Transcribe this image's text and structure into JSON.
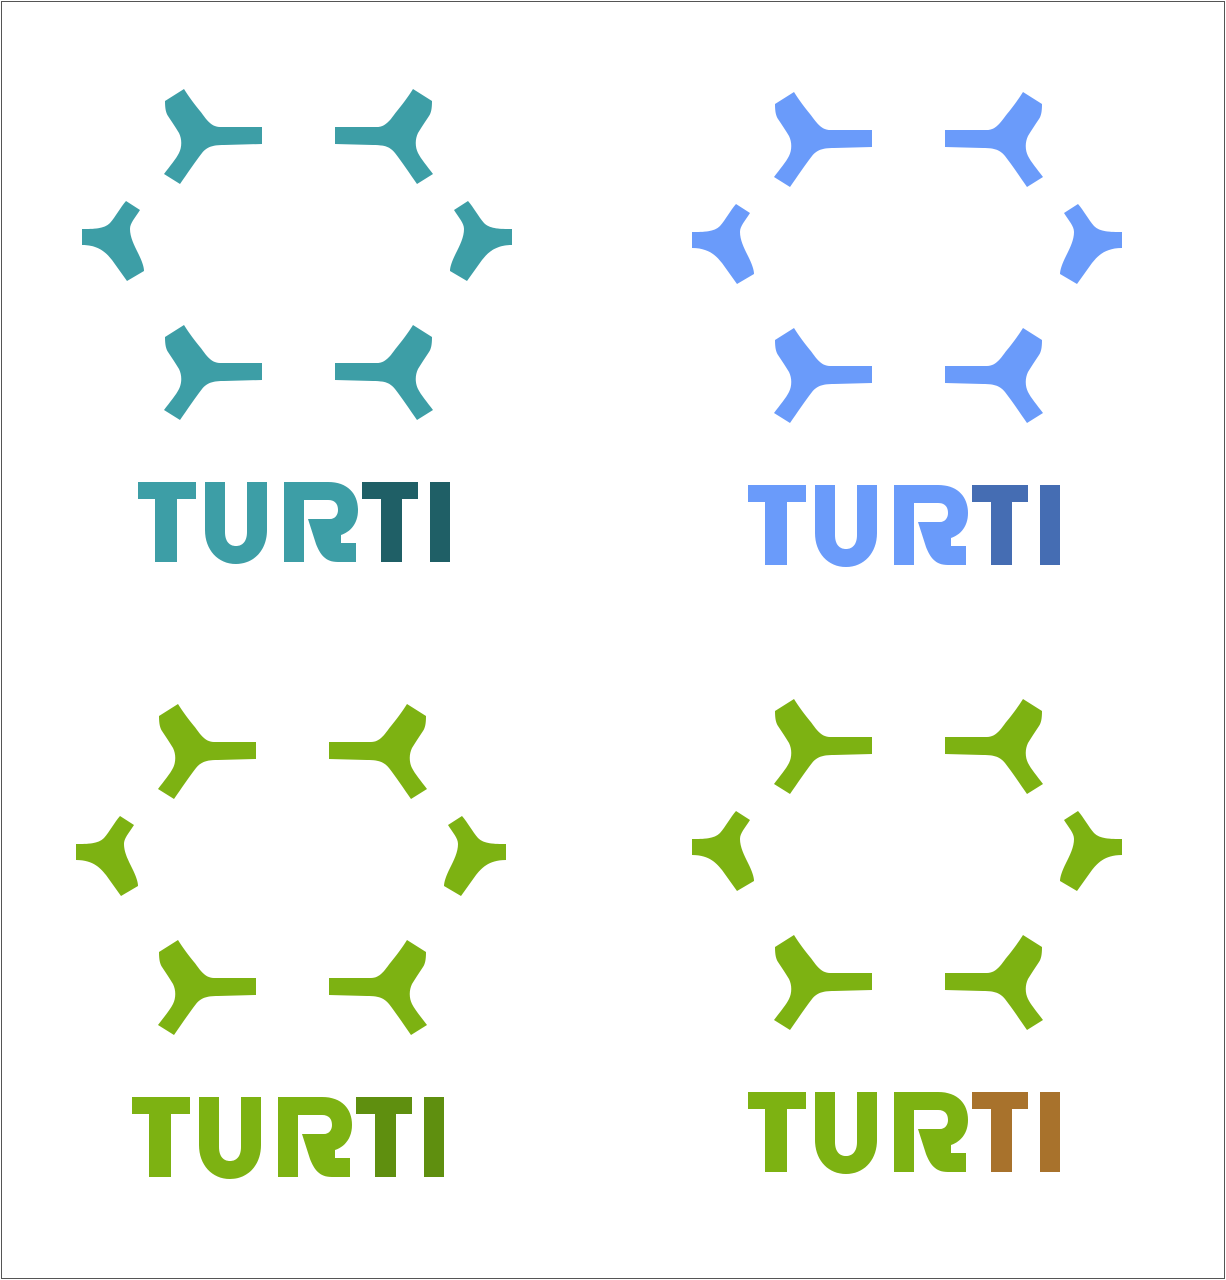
{
  "logo": {
    "letters": [
      "T",
      "U",
      "R",
      "T",
      "I"
    ],
    "text_accessible": "TURTI"
  },
  "variants": [
    {
      "id": "teal",
      "primary": "#3d9ea6",
      "accent": "#1f5f66"
    },
    {
      "id": "blue",
      "primary": "#6a9bfa",
      "accent": "#456db3"
    },
    {
      "id": "green",
      "primary": "#7db212",
      "accent": "#5f8f0f"
    },
    {
      "id": "green-brown",
      "primary": "#7db212",
      "accent": "#a8722c"
    }
  ]
}
